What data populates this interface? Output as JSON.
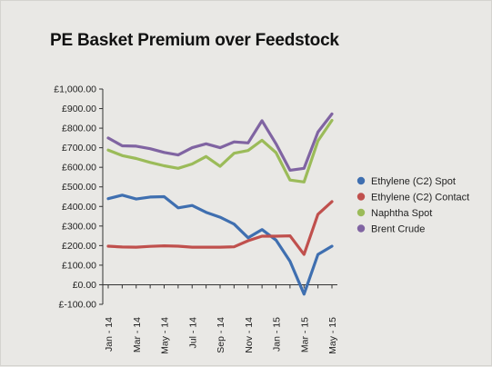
{
  "chart_data": {
    "type": "line",
    "title": "PE Basket Premium over Feedstock",
    "categories": [
      "Jan - 14",
      "Feb - 14",
      "Mar - 14",
      "Apr - 14",
      "May - 14",
      "Jun - 14",
      "Jul - 14",
      "Aug - 14",
      "Sep - 14",
      "Oct - 14",
      "Nov - 14",
      "Dec - 14",
      "Jan - 15",
      "Feb - 15",
      "Mar - 15",
      "Apr - 15",
      "May - 15"
    ],
    "tick_labels": [
      "Jan - 14",
      "Mar - 14",
      "May - 14",
      "Jul - 14",
      "Sep - 14",
      "Nov - 14",
      "Jan - 15",
      "Mar - 15",
      "May - 15"
    ],
    "y_ticks": [
      "£1,000.00",
      "£900.00",
      "£800.00",
      "£700.00",
      "£600.00",
      "£500.00",
      "£400.00",
      "£300.00",
      "£200.00",
      "£100.00",
      "£0.00",
      "£-100.00"
    ],
    "ylim": [
      -100,
      1000
    ],
    "legend_position": "right",
    "grid": false,
    "series": [
      {
        "name": "Ethylene (C2) Spot",
        "color": "#3f6fb0",
        "values": [
          440,
          458,
          438,
          448,
          450,
          393,
          405,
          370,
          345,
          310,
          240,
          282,
          228,
          120,
          -48,
          155,
          197
        ]
      },
      {
        "name": "Ethylene (C2) Contact",
        "color": "#c0504d",
        "values": [
          197,
          193,
          192,
          196,
          199,
          197,
          192,
          192,
          192,
          194,
          225,
          248,
          248,
          250,
          155,
          360,
          425
        ]
      },
      {
        "name": "Naphtha Spot",
        "color": "#9bbb59",
        "values": [
          688,
          660,
          645,
          625,
          608,
          595,
          617,
          655,
          605,
          672,
          686,
          738,
          675,
          535,
          525,
          735,
          840
        ]
      },
      {
        "name": "Brent Crude",
        "color": "#8064a2",
        "values": [
          750,
          710,
          708,
          695,
          676,
          663,
          700,
          720,
          700,
          730,
          725,
          838,
          720,
          585,
          595,
          780,
          873
        ]
      }
    ]
  }
}
